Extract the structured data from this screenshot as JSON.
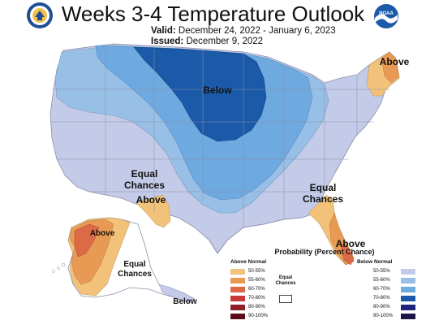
{
  "header": {
    "title": "Weeks 3-4 Temperature Outlook",
    "valid_label": "Valid:",
    "valid_value": "December 24, 2022 - January 6, 2023",
    "issued_label": "Issued:",
    "issued_value": "December 9, 2022"
  },
  "logos": {
    "left": "department-of-commerce-seal",
    "right": "noaa-logo",
    "right_text": "NOAA"
  },
  "map_labels": {
    "below_north": "Below",
    "above_northeast": "Above",
    "equal_chances_sw_line1": "Equal",
    "equal_chances_sw_line2": "Chances",
    "above_southwest": "Above",
    "equal_chances_se_line1": "Equal",
    "equal_chances_se_line2": "Chances",
    "above_florida": "Above",
    "above_alaska": "Above",
    "equal_chances_ak_line1": "Equal",
    "equal_chances_ak_line2": "Chances",
    "below_alaska": "Below"
  },
  "legend": {
    "title": "Probability (Percent Chance)",
    "above_header": "Above Normal",
    "below_header": "Below Normal",
    "equal_line1": "Equal",
    "equal_line2": "Chances",
    "above_items": [
      {
        "label": "50-55%",
        "color": "#f2c27a"
      },
      {
        "label": "55-60%",
        "color": "#e89a55"
      },
      {
        "label": "60-70%",
        "color": "#dd6a46"
      },
      {
        "label": "70-80%",
        "color": "#c83a3a"
      },
      {
        "label": "80-90%",
        "color": "#8e1e2a"
      },
      {
        "label": "90-100%",
        "color": "#5a0d18"
      }
    ],
    "below_items": [
      {
        "label": "50-55%",
        "color": "#c3cbe8"
      },
      {
        "label": "55-60%",
        "color": "#98bfe6"
      },
      {
        "label": "60-70%",
        "color": "#6ea9e0"
      },
      {
        "label": "70-80%",
        "color": "#1a5aa8"
      },
      {
        "label": "80-90%",
        "color": "#20237a"
      },
      {
        "label": "90-100%",
        "color": "#1b1448"
      }
    ]
  },
  "colors": {
    "below_50_55": "#c3cbe8",
    "below_55_60": "#98bfe6",
    "below_60_70": "#6ea9e0",
    "below_70_80": "#1a5aa8",
    "above_50_55": "#f2c27a",
    "above_55_60": "#e89a55",
    "above_60_70": "#dd6a46"
  }
}
